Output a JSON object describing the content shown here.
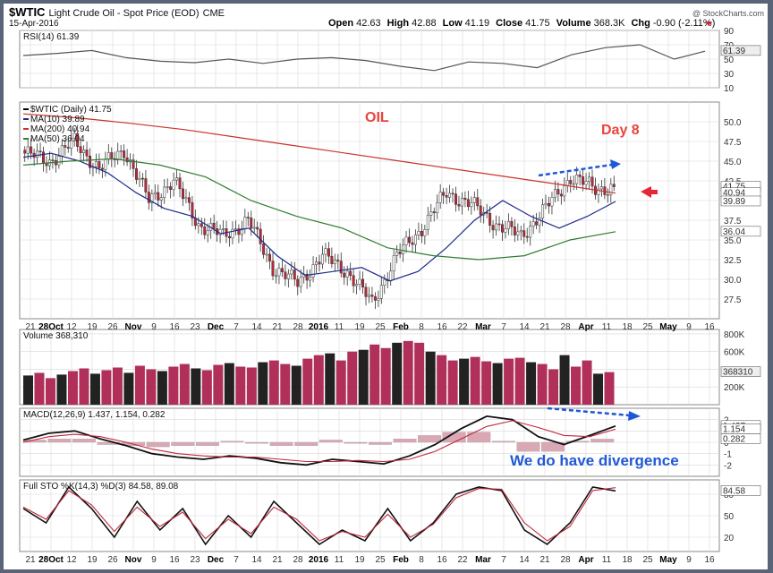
{
  "header": {
    "symbol": "$WTIC",
    "description": "Light Crude Oil - Spot Price (EOD)",
    "exchange": "CME",
    "date": "15-Apr-2016",
    "open_label": "Open",
    "open": "42.63",
    "high_label": "High",
    "high": "42.88",
    "low_label": "Low",
    "low": "41.19",
    "close_label": "Close",
    "close": "41.75",
    "volume_label": "Volume",
    "volume": "368.3K",
    "chg_label": "Chg",
    "chg": "-0.90 (-2.11%)",
    "watermark": "@ StockCharts.com"
  },
  "annotations": {
    "oil": "OIL",
    "day": "Day 8",
    "divergence": "We do have divergence"
  },
  "colors": {
    "up": "#ffffff",
    "down": "#c0273a",
    "ma10": "#1c2b8a",
    "ma200": "#c8332c",
    "ma50": "#2e7d32",
    "rsi": "#555555",
    "volume_up": "#222222",
    "volume_down": "#b0305a",
    "panel_bg": "#ffffff",
    "grid": "#d8d8d8"
  },
  "chart_data": [
    {
      "type": "line",
      "title": "RSI(14) 61.39",
      "legend": [
        "RSI(14) 61.39"
      ],
      "ylim": [
        10,
        90
      ],
      "y_ticks": [
        "90",
        "70",
        "50",
        "30",
        "10"
      ],
      "current_label": "61.39",
      "x_index": [
        0,
        10,
        20,
        30,
        40,
        50,
        60,
        70,
        80,
        90,
        100,
        110,
        120,
        130,
        140,
        150,
        160,
        170,
        180,
        190,
        199
      ],
      "values": [
        55,
        58,
        62,
        52,
        47,
        45,
        50,
        44,
        50,
        52,
        48,
        40,
        34,
        46,
        44,
        38,
        56,
        66,
        70,
        50,
        61
      ]
    },
    {
      "type": "candlestick",
      "title": "$WTIC (Daily) 41.75",
      "ylim": [
        25,
        52.5
      ],
      "y_ticks": [
        "50.0",
        "47.5",
        "45.0",
        "42.5",
        "40.0",
        "37.5",
        "35.0",
        "32.5",
        "30.0",
        "27.5"
      ],
      "current_label": "41.75",
      "x_ticks": [
        "21",
        "28Oct",
        "12",
        "19",
        "26",
        "Nov",
        "9",
        "16",
        "23",
        "Dec",
        "7",
        "14",
        "21",
        "28",
        "2016",
        "11",
        "19",
        "25",
        "Feb",
        "8",
        "16",
        "22",
        "Mar",
        "7",
        "14",
        "21",
        "28",
        "Apr",
        "11",
        "18",
        "25",
        "May",
        "9",
        "16"
      ],
      "close_path_index": [
        0,
        8,
        16,
        24,
        32,
        40,
        48,
        56,
        64,
        72,
        80,
        88,
        96,
        104,
        112,
        120,
        128,
        136,
        144,
        152,
        160,
        168,
        176,
        184,
        190
      ],
      "close_path": [
        46.0,
        45.0,
        47.5,
        44.0,
        46.5,
        40.0,
        42.5,
        37.0,
        35.5,
        37.5,
        31.5,
        29.5,
        33.0,
        31.0,
        27.0,
        33.0,
        36.5,
        41.0,
        39.5,
        37.0,
        35.5,
        39.0,
        43.0,
        41.5,
        41.75
      ],
      "series": [
        {
          "name": "MA(10) 39.89",
          "values": [
            45.5,
            46.0,
            45.0,
            43.5,
            41.0,
            39.0,
            38.0,
            35.8,
            36.5,
            33.0,
            30.5,
            31.0,
            31.5,
            29.8,
            31.0,
            34.0,
            37.5,
            40.0,
            38.0,
            36.5,
            38.0,
            39.89
          ]
        },
        {
          "name": "MA(200) 40.94",
          "values": [
            51.0,
            50.5,
            49.8,
            49.0,
            48.0,
            47.0,
            46.0,
            45.0,
            44.0,
            43.0,
            42.0,
            40.94
          ]
        },
        {
          "name": "MA(50) 36.04",
          "values": [
            44.5,
            45.0,
            45.3,
            44.5,
            43.0,
            40.0,
            38.0,
            36.5,
            34.0,
            33.0,
            32.5,
            33.0,
            35.0,
            36.04
          ]
        }
      ],
      "legend": [
        "$WTIC (Daily) 41.75",
        "MA(10) 39.89",
        "MA(200) 40.94",
        "MA(50) 36.04"
      ],
      "marker_labels": [
        "41.75",
        "40.94",
        "39.89",
        "36.04"
      ]
    },
    {
      "type": "bar",
      "title": "Volume 368,310",
      "legend": [
        "Volume 368,310"
      ],
      "ylim": [
        0,
        850
      ],
      "y_ticks": [
        "800K",
        "600K",
        "400K",
        "200K"
      ],
      "current_label": "368310",
      "values_k": [
        330,
        360,
        300,
        340,
        380,
        410,
        350,
        390,
        420,
        360,
        440,
        400,
        380,
        430,
        460,
        410,
        390,
        450,
        470,
        430,
        420,
        480,
        500,
        460,
        440,
        520,
        560,
        580,
        500,
        600,
        620,
        680,
        640,
        700,
        720,
        700,
        600,
        560,
        500,
        520,
        540,
        490,
        470,
        520,
        530,
        480,
        460,
        400,
        560,
        430,
        500,
        350,
        368
      ]
    },
    {
      "type": "line",
      "title": "MACD(12,26,9) 1.437, 1.154, 0.282",
      "legend": [
        "MACD(12,26,9) 1.437, 1.154, 0.282"
      ],
      "ylim": [
        -3,
        3
      ],
      "y_ticks": [
        "2",
        "1",
        "0",
        "-1",
        "-2"
      ],
      "current_labels": [
        "1.437",
        "1.154",
        "0.282"
      ],
      "series": [
        {
          "name": "MACD",
          "values": [
            0.2,
            0.8,
            1.0,
            0.3,
            -0.3,
            -1.0,
            -1.3,
            -1.5,
            -1.2,
            -1.4,
            -1.8,
            -2.0,
            -1.5,
            -1.7,
            -1.9,
            -1.2,
            -0.2,
            1.2,
            2.3,
            2.0,
            0.5,
            -0.2,
            0.6,
            1.437
          ]
        },
        {
          "name": "Signal",
          "values": [
            0.0,
            0.5,
            0.7,
            0.5,
            0.0,
            -0.6,
            -1.0,
            -1.2,
            -1.3,
            -1.3,
            -1.5,
            -1.7,
            -1.7,
            -1.6,
            -1.7,
            -1.5,
            -0.8,
            0.3,
            1.4,
            1.9,
            1.3,
            0.6,
            0.5,
            1.154
          ]
        },
        {
          "name": "Histogram",
          "values": [
            0.2,
            0.3,
            0.3,
            -0.2,
            -0.3,
            -0.4,
            -0.3,
            -0.3,
            0.1,
            -0.1,
            -0.3,
            -0.3,
            0.2,
            -0.1,
            -0.2,
            0.3,
            0.6,
            0.9,
            0.9,
            0.1,
            -0.8,
            -0.8,
            0.1,
            0.282
          ]
        }
      ]
    },
    {
      "type": "line",
      "title": "Full STO %K(14,3) %D(3) 84.58, 89.08",
      "legend": [
        "Full STO %K(14,3) %D(3) 84.58, 89.08"
      ],
      "ylim": [
        0,
        100
      ],
      "y_ticks": [
        "80",
        "50",
        "20"
      ],
      "current_label": "84.58",
      "series": [
        {
          "name": "%K",
          "values": [
            60,
            40,
            90,
            60,
            20,
            70,
            30,
            60,
            10,
            50,
            20,
            70,
            40,
            10,
            30,
            15,
            60,
            15,
            40,
            80,
            90,
            85,
            30,
            10,
            40,
            90,
            84.58
          ]
        },
        {
          "name": "%D",
          "values": [
            62,
            45,
            85,
            65,
            28,
            62,
            35,
            55,
            18,
            45,
            25,
            62,
            45,
            15,
            28,
            20,
            52,
            20,
            38,
            75,
            88,
            87,
            40,
            15,
            35,
            85,
            89.08
          ]
        }
      ]
    }
  ]
}
